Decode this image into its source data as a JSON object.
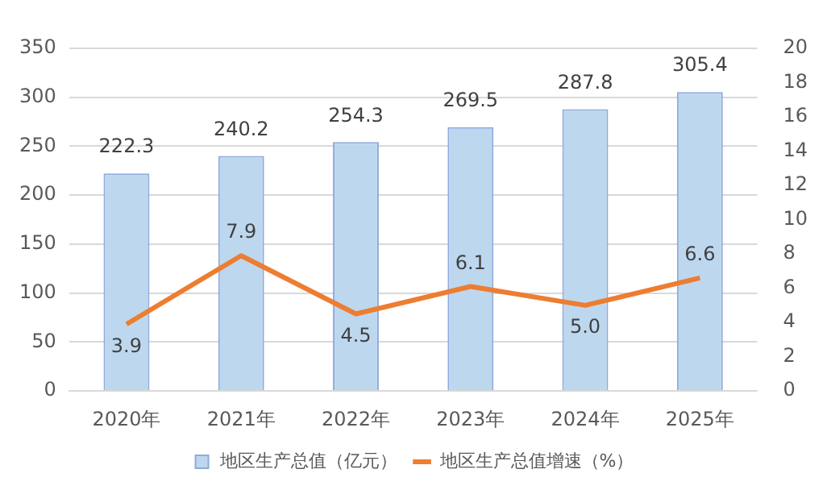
{
  "chart_data": {
    "type": "bar",
    "categories": [
      "2020年",
      "2021年",
      "2022年",
      "2023年",
      "2024年",
      "2025年"
    ],
    "series": [
      {
        "name": "地区生产总值（亿元）",
        "color": "#bdd7ee",
        "values": [
          222.3,
          240.2,
          254.3,
          269.5,
          287.8,
          305.4
        ],
        "value_labels": [
          "222.3",
          "240.2",
          "254.3",
          "269.5",
          "287.8",
          "305.4"
        ]
      },
      {
        "name": "地区生产总值增速（%）",
        "type": "line",
        "axis": "y2",
        "color": "#ed7d31",
        "values": [
          3.9,
          7.9,
          4.5,
          6.1,
          5.0,
          6.6
        ],
        "value_labels": [
          "3.9",
          "7.9",
          "4.5",
          "6.1",
          "5.0",
          "6.6"
        ]
      }
    ],
    "ylim": [
      0,
      350
    ],
    "yticks": [
      0,
      50,
      100,
      150,
      200,
      250,
      300,
      350
    ],
    "y2lim": [
      0,
      20
    ],
    "y2ticks": [
      0,
      2,
      4,
      6,
      8,
      10,
      12,
      14,
      16,
      18,
      20
    ],
    "grid": "y",
    "legend": "bottom",
    "marker": "none",
    "line_style": "solid"
  }
}
